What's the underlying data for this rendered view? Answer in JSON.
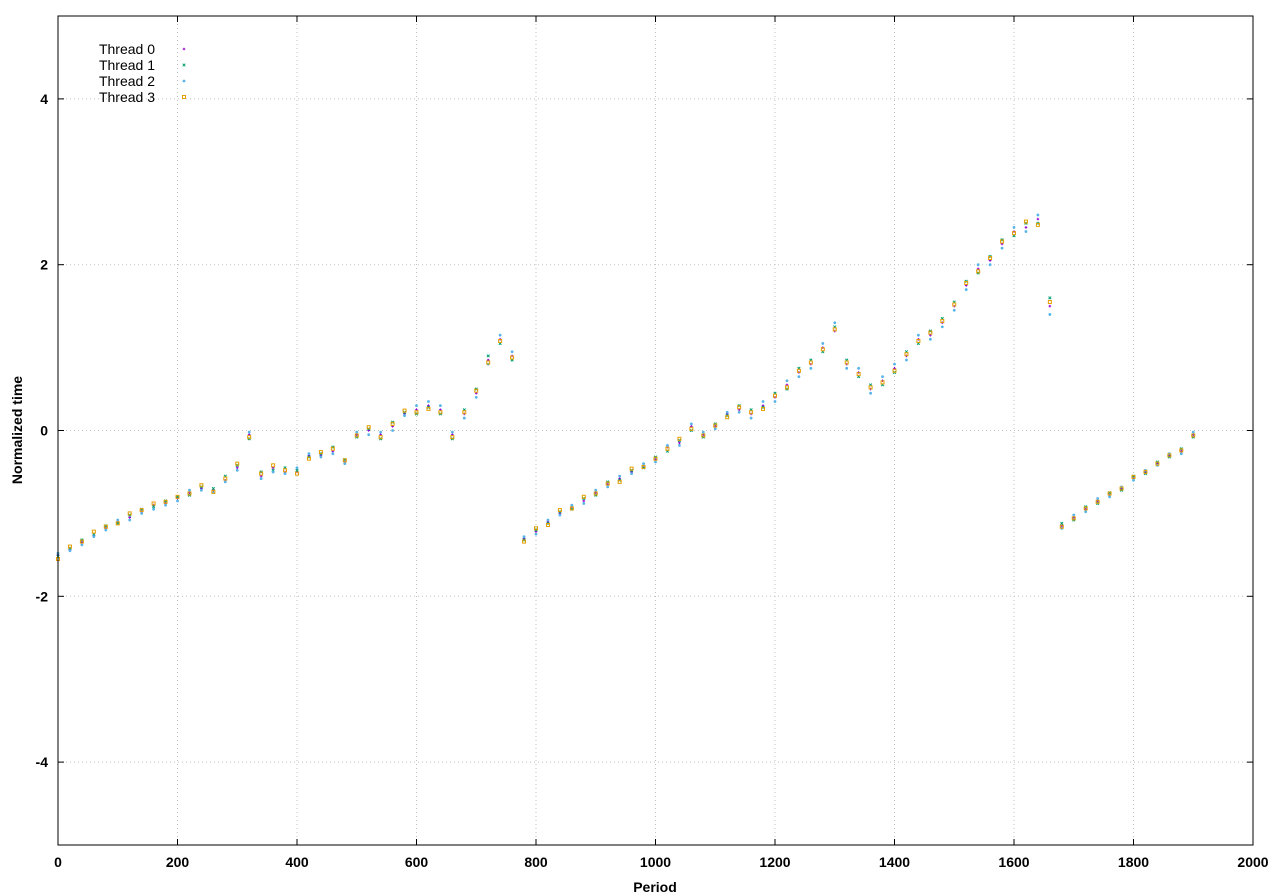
{
  "chart_data": {
    "type": "scatter",
    "xlabel": "Period",
    "ylabel": "Normalized time",
    "xlim": [
      0,
      2000
    ],
    "ylim": [
      -5,
      5
    ],
    "x_ticks": [
      0,
      200,
      400,
      600,
      800,
      1000,
      1200,
      1400,
      1600,
      1800,
      2000
    ],
    "y_ticks": [
      -4,
      -2,
      0,
      2,
      4
    ],
    "x_tick_labels": [
      "0",
      "200",
      "400",
      "600",
      "800",
      "1000",
      "1200",
      "1400",
      "1600",
      "1800",
      "2000"
    ],
    "y_tick_labels": [
      "-4",
      "-2",
      "0",
      "2",
      "4"
    ],
    "grid": true,
    "legend_position": "top-left",
    "series": [
      {
        "name": "Thread 0",
        "color": "#9400d3",
        "marker": "plus",
        "x": [
          0,
          20,
          40,
          60,
          80,
          100,
          120,
          140,
          160,
          180,
          200,
          220,
          240,
          260,
          280,
          300,
          320,
          340,
          360,
          380,
          400,
          420,
          440,
          460,
          480,
          500,
          520,
          540,
          560,
          580,
          600,
          620,
          640,
          660,
          680,
          700,
          720,
          740,
          760,
          780,
          800,
          820,
          840,
          860,
          880,
          900,
          920,
          940,
          960,
          980,
          1000,
          1020,
          1040,
          1060,
          1080,
          1100,
          1120,
          1140,
          1160,
          1180,
          1200,
          1220,
          1240,
          1260,
          1280,
          1300,
          1320,
          1340,
          1360,
          1380,
          1400,
          1420,
          1440,
          1460,
          1480,
          1500,
          1520,
          1540,
          1560,
          1580,
          1600,
          1620,
          1640,
          1660,
          1680,
          1700,
          1720,
          1740,
          1760,
          1780,
          1800,
          1820,
          1840,
          1860,
          1880,
          1900
        ],
        "y": [
          -1.5,
          -1.44,
          -1.35,
          -1.27,
          -1.18,
          -1.1,
          -1.05,
          -0.98,
          -0.9,
          -0.88,
          -0.82,
          -0.75,
          -0.7,
          -0.72,
          -0.6,
          -0.45,
          -0.05,
          -0.55,
          -0.45,
          -0.5,
          -0.5,
          -0.3,
          -0.3,
          -0.25,
          -0.38,
          -0.05,
          0.0,
          -0.05,
          0.05,
          0.2,
          0.25,
          0.3,
          0.25,
          -0.05,
          0.2,
          0.45,
          0.85,
          1.1,
          0.9,
          -1.3,
          -1.22,
          -1.1,
          -1.0,
          -0.92,
          -0.85,
          -0.75,
          -0.65,
          -0.58,
          -0.5,
          -0.42,
          -0.35,
          -0.2,
          -0.15,
          0.05,
          -0.05,
          0.05,
          0.2,
          0.25,
          0.2,
          0.3,
          0.4,
          0.55,
          0.7,
          0.8,
          1.0,
          1.2,
          0.8,
          0.7,
          0.5,
          0.6,
          0.75,
          0.9,
          1.1,
          1.15,
          1.3,
          1.5,
          1.75,
          1.95,
          2.05,
          2.25,
          2.4,
          2.45,
          2.55,
          1.5,
          -1.15,
          -1.05,
          -0.95,
          -0.85,
          -0.78,
          -0.7,
          -0.58,
          -0.5,
          -0.4,
          -0.3,
          -0.25,
          -0.05
        ]
      },
      {
        "name": "Thread 1",
        "color": "#009e73",
        "marker": "x",
        "x": [
          0,
          20,
          40,
          60,
          80,
          100,
          120,
          140,
          160,
          180,
          200,
          220,
          240,
          260,
          280,
          300,
          320,
          340,
          360,
          380,
          400,
          420,
          440,
          460,
          480,
          500,
          520,
          540,
          560,
          580,
          600,
          620,
          640,
          660,
          680,
          700,
          720,
          740,
          760,
          780,
          800,
          820,
          840,
          860,
          880,
          900,
          920,
          940,
          960,
          980,
          1000,
          1020,
          1040,
          1060,
          1080,
          1100,
          1120,
          1140,
          1160,
          1180,
          1200,
          1220,
          1240,
          1260,
          1280,
          1300,
          1320,
          1340,
          1360,
          1380,
          1400,
          1420,
          1440,
          1460,
          1480,
          1500,
          1520,
          1540,
          1560,
          1580,
          1600,
          1620,
          1640,
          1660,
          1680,
          1700,
          1720,
          1740,
          1760,
          1780,
          1800,
          1820,
          1840,
          1860,
          1880,
          1900
        ],
        "y": [
          -1.52,
          -1.42,
          -1.32,
          -1.25,
          -1.15,
          -1.12,
          -1.02,
          -0.95,
          -0.92,
          -0.85,
          -0.8,
          -0.78,
          -0.68,
          -0.7,
          -0.55,
          -0.42,
          -0.1,
          -0.5,
          -0.48,
          -0.45,
          -0.48,
          -0.32,
          -0.28,
          -0.2,
          -0.35,
          -0.08,
          0.02,
          -0.1,
          0.1,
          0.22,
          0.2,
          0.28,
          0.2,
          -0.1,
          0.25,
          0.5,
          0.9,
          1.05,
          0.85,
          -1.32,
          -1.2,
          -1.12,
          -0.98,
          -0.95,
          -0.82,
          -0.78,
          -0.62,
          -0.6,
          -0.48,
          -0.45,
          -0.32,
          -0.25,
          -0.12,
          0.0,
          -0.08,
          0.08,
          0.18,
          0.3,
          0.25,
          0.28,
          0.45,
          0.5,
          0.75,
          0.85,
          0.95,
          1.25,
          0.85,
          0.65,
          0.55,
          0.55,
          0.7,
          0.95,
          1.05,
          1.2,
          1.35,
          1.55,
          1.8,
          1.9,
          2.1,
          2.3,
          2.35,
          2.5,
          2.5,
          1.6,
          -1.12,
          -1.08,
          -0.92,
          -0.88,
          -0.75,
          -0.72,
          -0.55,
          -0.52,
          -0.38,
          -0.32,
          -0.22,
          -0.08
        ]
      },
      {
        "name": "Thread 2",
        "color": "#56b4e9",
        "marker": "star",
        "x": [
          0,
          20,
          40,
          60,
          80,
          100,
          120,
          140,
          160,
          180,
          200,
          220,
          240,
          260,
          280,
          300,
          320,
          340,
          360,
          380,
          400,
          420,
          440,
          460,
          480,
          500,
          520,
          540,
          560,
          580,
          600,
          620,
          640,
          660,
          680,
          700,
          720,
          740,
          760,
          780,
          800,
          820,
          840,
          860,
          880,
          900,
          920,
          940,
          960,
          980,
          1000,
          1020,
          1040,
          1060,
          1080,
          1100,
          1120,
          1140,
          1160,
          1180,
          1200,
          1220,
          1240,
          1260,
          1280,
          1300,
          1320,
          1340,
          1360,
          1380,
          1400,
          1420,
          1440,
          1460,
          1480,
          1500,
          1520,
          1540,
          1560,
          1580,
          1600,
          1620,
          1640,
          1660,
          1680,
          1700,
          1720,
          1740,
          1760,
          1780,
          1800,
          1820,
          1840,
          1860,
          1880,
          1900
        ],
        "y": [
          -1.48,
          -1.45,
          -1.38,
          -1.28,
          -1.2,
          -1.08,
          -1.08,
          -1.0,
          -0.95,
          -0.9,
          -0.85,
          -0.72,
          -0.72,
          -0.75,
          -0.62,
          -0.48,
          -0.02,
          -0.58,
          -0.5,
          -0.52,
          -0.45,
          -0.28,
          -0.32,
          -0.28,
          -0.4,
          -0.02,
          -0.05,
          -0.02,
          0.0,
          0.18,
          0.3,
          0.35,
          0.3,
          -0.02,
          0.15,
          0.4,
          0.8,
          1.15,
          0.95,
          -1.28,
          -1.25,
          -1.08,
          -1.02,
          -0.9,
          -0.88,
          -0.72,
          -0.68,
          -0.55,
          -0.52,
          -0.4,
          -0.38,
          -0.18,
          -0.18,
          0.08,
          -0.02,
          0.02,
          0.22,
          0.22,
          0.15,
          0.35,
          0.35,
          0.6,
          0.65,
          0.75,
          1.05,
          1.3,
          0.75,
          0.75,
          0.45,
          0.65,
          0.8,
          0.85,
          1.15,
          1.1,
          1.25,
          1.45,
          1.7,
          2.0,
          2.0,
          2.2,
          2.45,
          2.4,
          2.6,
          1.4,
          -1.18,
          -1.02,
          -0.98,
          -0.82,
          -0.8,
          -0.68,
          -0.6,
          -0.48,
          -0.42,
          -0.28,
          -0.28,
          -0.02
        ]
      },
      {
        "name": "Thread 3",
        "color": "#e69f00",
        "marker": "square",
        "x": [
          0,
          20,
          40,
          60,
          80,
          100,
          120,
          140,
          160,
          180,
          200,
          220,
          240,
          260,
          280,
          300,
          320,
          340,
          360,
          380,
          400,
          420,
          440,
          460,
          480,
          500,
          520,
          540,
          560,
          580,
          600,
          620,
          640,
          660,
          680,
          700,
          720,
          740,
          760,
          780,
          800,
          820,
          840,
          860,
          880,
          900,
          920,
          940,
          960,
          980,
          1000,
          1020,
          1040,
          1060,
          1080,
          1100,
          1120,
          1140,
          1160,
          1180,
          1200,
          1220,
          1240,
          1260,
          1280,
          1300,
          1320,
          1340,
          1360,
          1380,
          1400,
          1420,
          1440,
          1460,
          1480,
          1500,
          1520,
          1540,
          1560,
          1580,
          1600,
          1620,
          1640,
          1660,
          1680,
          1700,
          1720,
          1740,
          1760,
          1780,
          1800,
          1820,
          1840,
          1860,
          1880,
          1900
        ],
        "y": [
          -1.55,
          -1.4,
          -1.34,
          -1.22,
          -1.16,
          -1.12,
          -1.0,
          -0.96,
          -0.88,
          -0.86,
          -0.8,
          -0.76,
          -0.66,
          -0.74,
          -0.58,
          -0.4,
          -0.08,
          -0.52,
          -0.42,
          -0.48,
          -0.52,
          -0.34,
          -0.26,
          -0.22,
          -0.36,
          -0.06,
          0.04,
          -0.08,
          0.08,
          0.24,
          0.22,
          0.26,
          0.22,
          -0.08,
          0.22,
          0.48,
          0.82,
          1.08,
          0.88,
          -1.34,
          -1.18,
          -1.14,
          -0.96,
          -0.94,
          -0.8,
          -0.76,
          -0.64,
          -0.62,
          -0.46,
          -0.44,
          -0.34,
          -0.22,
          -0.1,
          0.02,
          -0.06,
          0.06,
          0.16,
          0.28,
          0.22,
          0.26,
          0.42,
          0.52,
          0.72,
          0.82,
          0.98,
          1.22,
          0.82,
          0.68,
          0.52,
          0.58,
          0.72,
          0.92,
          1.08,
          1.18,
          1.32,
          1.52,
          1.78,
          1.92,
          2.08,
          2.28,
          2.38,
          2.52,
          2.48,
          1.55,
          -1.16,
          -1.06,
          -0.94,
          -0.86,
          -0.76,
          -0.7,
          -0.56,
          -0.5,
          -0.4,
          -0.3,
          -0.24,
          -0.06
        ]
      }
    ]
  }
}
